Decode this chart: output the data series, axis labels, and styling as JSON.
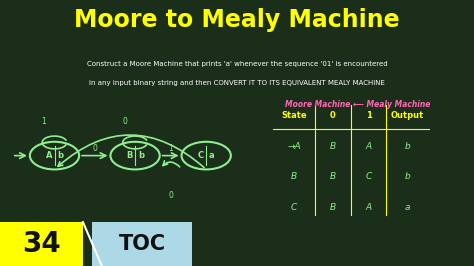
{
  "title": "Moore to Mealy Machine",
  "title_color": "#FFFF00",
  "bg_color": "#1a2e1a",
  "subtitle_line1": "Construct a Moore Machine that prints 'a' whenever the sequence '01' is encountered",
  "subtitle_line2": "in any input binary string and then CONVERT IT TO ITS EQUIVALENT MEALY MACHINE",
  "subtitle_color": "#FFFFFF",
  "state_color": "#90EE90",
  "state_text_color": "#90EE90",
  "arrow_color": "#90EE90",
  "table_header_color": "#FFFF00",
  "table_cell_color": "#90EE90",
  "moore_mealy_color": "#FF69B4",
  "number_label": "34",
  "toc_label": "TOC",
  "number_bg": "#FFFF00",
  "toc_bg": "#ADD8E6"
}
